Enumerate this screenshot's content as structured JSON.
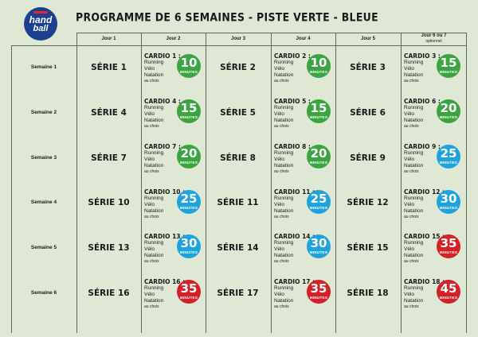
{
  "logo": {
    "line1": "hand",
    "line2": "ball"
  },
  "title": "PROGRAMME DE 6 SEMAINES - PISTE VERTE - BLEUE",
  "headers": [
    "Jour 1",
    "Jour 2",
    "Jour 3",
    "Jour 4",
    "Jour 5",
    "Jour 6 ou 7"
  ],
  "header_sub": "optionnel",
  "activities": {
    "run": "Running",
    "bike": "Vélo",
    "swim": "Natation",
    "choice": "au choix"
  },
  "minutes_label": "MINUTES",
  "colors": {
    "green": "#3aa540",
    "blue": "#1fa3dd",
    "red": "#d42127"
  },
  "weeks": [
    {
      "label": "Semaine 1",
      "series": [
        "SÉRIE 1",
        "SÉRIE 2",
        "SÉRIE 3"
      ],
      "cardios": [
        {
          "title": "CARDIO 1 :",
          "minutes": "10",
          "color": "green"
        },
        {
          "title": "CARDIO 2 :",
          "minutes": "10",
          "color": "green"
        },
        {
          "title": "CARDIO 3 :",
          "minutes": "15",
          "color": "green"
        }
      ]
    },
    {
      "label": "Semaine 2",
      "series": [
        "SÉRIE 4",
        "SÉRIE 5",
        "SÉRIE 6"
      ],
      "cardios": [
        {
          "title": "CARDIO 4 :",
          "minutes": "15",
          "color": "green"
        },
        {
          "title": "CARDIO 5 :",
          "minutes": "15",
          "color": "green"
        },
        {
          "title": "CARDIO 6 :",
          "minutes": "20",
          "color": "green"
        }
      ]
    },
    {
      "label": "Semaine 3",
      "series": [
        "SÉRIE 7",
        "SÉRIE 8",
        "SÉRIE 9"
      ],
      "cardios": [
        {
          "title": "CARDIO 7 :",
          "minutes": "20",
          "color": "green"
        },
        {
          "title": "CARDIO 8 :",
          "minutes": "20",
          "color": "green"
        },
        {
          "title": "CARDIO 9 :",
          "minutes": "25",
          "color": "blue"
        }
      ]
    },
    {
      "label": "Semaine 4",
      "series": [
        "SÉRIE 10",
        "SÉRIE 11",
        "SÉRIE 12"
      ],
      "cardios": [
        {
          "title": "CARDIO 10 :",
          "minutes": "25",
          "color": "blue"
        },
        {
          "title": "CARDIO 11 :",
          "minutes": "25",
          "color": "blue"
        },
        {
          "title": "CARDIO 12 :",
          "minutes": "30",
          "color": "blue"
        }
      ]
    },
    {
      "label": "Semaine 5",
      "series": [
        "SÉRIE 13",
        "SÉRIE 14",
        "SÉRIE 15"
      ],
      "cardios": [
        {
          "title": "CARDIO 13 :",
          "minutes": "30",
          "color": "blue"
        },
        {
          "title": "CARDIO 14 :",
          "minutes": "30",
          "color": "blue"
        },
        {
          "title": "CARDIO 15 :",
          "minutes": "35",
          "color": "red"
        }
      ]
    },
    {
      "label": "Semaine 6",
      "series": [
        "SÉRIE 16",
        "SÉRIE 17",
        "SÉRIE 18"
      ],
      "cardios": [
        {
          "title": "CARDIO 16 :",
          "minutes": "35",
          "color": "red"
        },
        {
          "title": "CARDIO 17 :",
          "minutes": "35",
          "color": "red"
        },
        {
          "title": "CARDIO 18 :",
          "minutes": "45",
          "color": "red"
        }
      ]
    }
  ]
}
